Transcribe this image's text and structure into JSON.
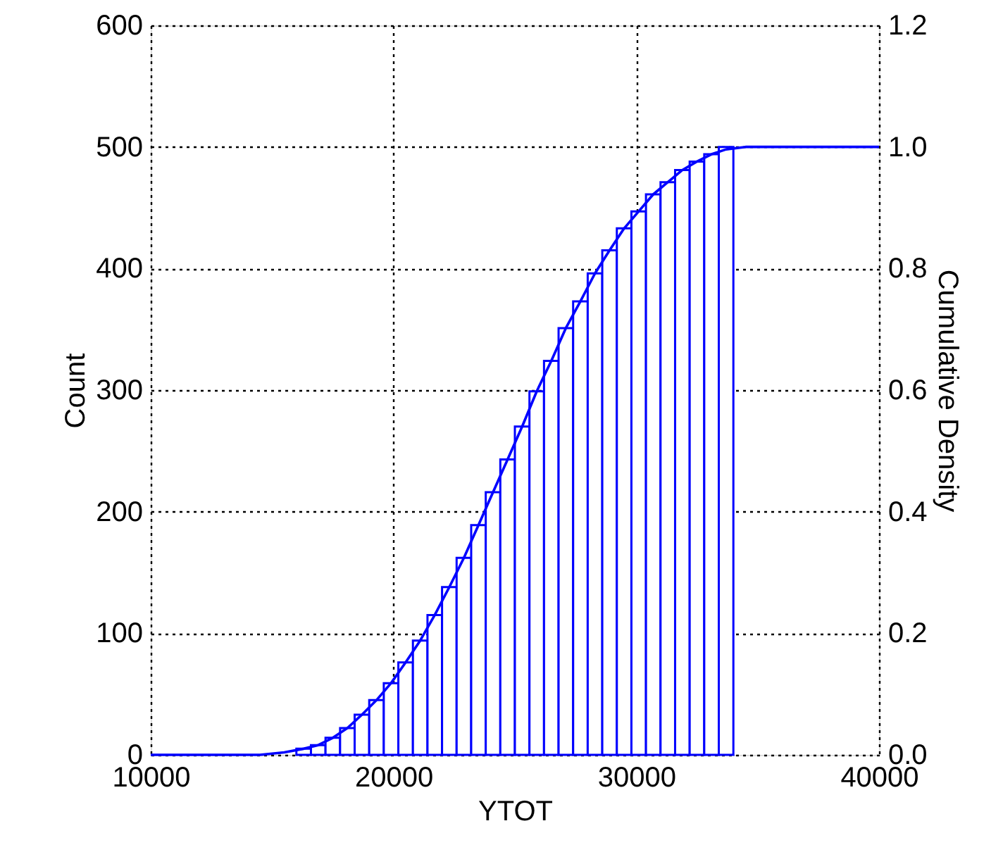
{
  "chart_data": {
    "type": "histogram",
    "xlabel": "YTOT",
    "ylabel": "Count",
    "y2label": "Cumulative Density",
    "bins": [
      16000,
      16600,
      17200,
      17800,
      18400,
      19000,
      19600,
      20200,
      20800,
      21400,
      22000,
      22600,
      23200,
      23800,
      24400,
      25000,
      25600,
      26200,
      26800,
      27400,
      28000,
      28600,
      29200,
      29800,
      30400,
      31000,
      31600,
      32200,
      32800,
      33400,
      34000
    ],
    "values": [
      5,
      8,
      14,
      22,
      33,
      45,
      59,
      76,
      94,
      115,
      138,
      162,
      189,
      216,
      243,
      270,
      299,
      324,
      351,
      373,
      396,
      415,
      433,
      447,
      461,
      471,
      481,
      488,
      494,
      500
    ],
    "color": "#0000ff",
    "series": [
      {
        "type": "line",
        "axis": "y2",
        "color": "#0000ff",
        "x": [
          10000,
          14500,
          15500,
          16300,
          16900,
          17500,
          18100,
          18700,
          19300,
          19900,
          20500,
          21100,
          21700,
          22300,
          22900,
          23500,
          24100,
          24700,
          25300,
          25900,
          26500,
          27100,
          27700,
          28300,
          28900,
          29500,
          30100,
          30700,
          31300,
          31900,
          32500,
          33100,
          33700,
          34500,
          36000,
          40000
        ],
        "values": [
          0,
          0,
          0.004,
          0.01,
          0.016,
          0.028,
          0.044,
          0.066,
          0.09,
          0.118,
          0.152,
          0.188,
          0.23,
          0.276,
          0.324,
          0.378,
          0.432,
          0.486,
          0.54,
          0.598,
          0.648,
          0.702,
          0.746,
          0.792,
          0.83,
          0.866,
          0.894,
          0.922,
          0.942,
          0.962,
          0.976,
          0.988,
          0.996,
          1.0,
          1.0,
          1.0
        ]
      }
    ],
    "xlim": [
      10000,
      40000
    ],
    "xticks": [
      10000,
      20000,
      30000,
      40000
    ],
    "ylim": [
      0,
      600
    ],
    "yticks": [
      0,
      100,
      200,
      300,
      400,
      500,
      600
    ],
    "y2lim": [
      0,
      1.2
    ],
    "y2ticks": [
      {
        "value": 0,
        "label": "0.0"
      },
      0.2,
      0.4,
      0.6,
      0.8,
      {
        "value": 1,
        "label": "1.0"
      },
      1.2
    ],
    "grid": true
  }
}
